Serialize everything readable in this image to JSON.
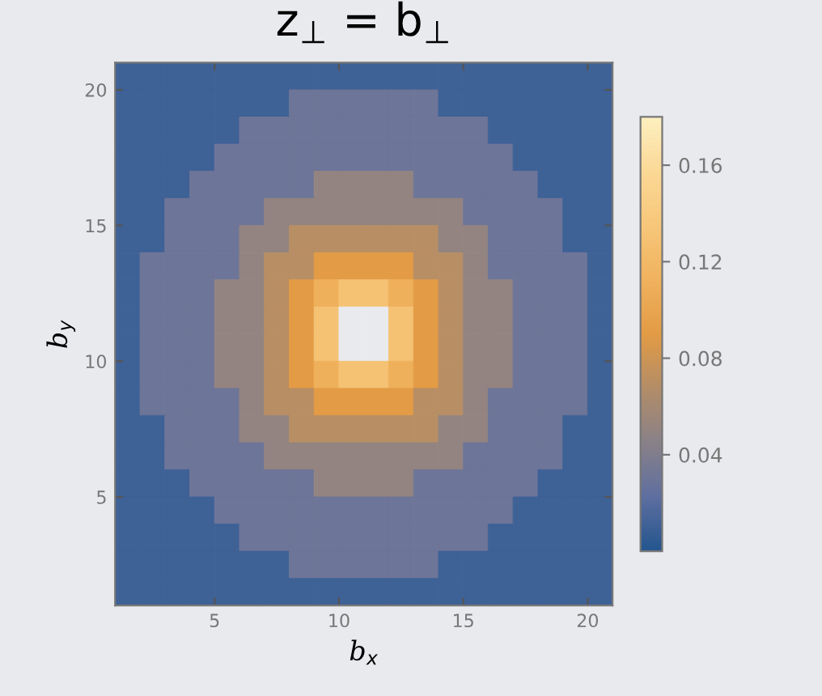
{
  "chart_data": {
    "type": "heatmap",
    "title": "z$_{⊥}$ = b$_{⊥}$",
    "xlabel": "b$_{x}$",
    "ylabel": "b$_{y}$",
    "xlim": [
      1,
      21
    ],
    "ylim": [
      1,
      21
    ],
    "xticks": [
      5,
      10,
      15,
      20
    ],
    "yticks": [
      5,
      10,
      15,
      20
    ],
    "clim": [
      0,
      0.18
    ],
    "cticks": [
      0.04,
      0.08,
      0.12,
      0.16
    ],
    "colors": [
      "#24568f",
      "#5f6fa0",
      "#8a8188",
      "#b38d68",
      "#e39b45",
      "#f0b25e",
      "#f7c77a",
      "#fbd896",
      "#fdf0c0"
    ],
    "cells": [
      [
        0.01,
        0.01,
        0.01,
        0.01,
        0.01,
        0.01,
        0.01,
        0.01,
        0.01,
        0.01,
        0.01,
        0.01,
        0.01,
        0.01,
        0.01,
        0.01,
        0.01,
        0.01,
        0.01,
        0.01
      ],
      [
        0.01,
        0.01,
        0.01,
        0.01,
        0.01,
        0.01,
        0.01,
        0.03,
        0.03,
        0.03,
        0.03,
        0.03,
        0.03,
        0.01,
        0.01,
        0.01,
        0.01,
        0.01,
        0.01,
        0.01
      ],
      [
        0.01,
        0.01,
        0.01,
        0.01,
        0.01,
        0.03,
        0.03,
        0.03,
        0.03,
        0.03,
        0.03,
        0.03,
        0.03,
        0.03,
        0.03,
        0.01,
        0.01,
        0.01,
        0.01,
        0.01
      ],
      [
        0.01,
        0.01,
        0.01,
        0.01,
        0.03,
        0.03,
        0.03,
        0.03,
        0.03,
        0.03,
        0.03,
        0.03,
        0.03,
        0.03,
        0.03,
        0.03,
        0.01,
        0.01,
        0.01,
        0.01
      ],
      [
        0.01,
        0.01,
        0.01,
        0.03,
        0.03,
        0.03,
        0.03,
        0.03,
        0.05,
        0.05,
        0.05,
        0.05,
        0.03,
        0.03,
        0.03,
        0.03,
        0.03,
        0.01,
        0.01,
        0.01
      ],
      [
        0.01,
        0.01,
        0.03,
        0.03,
        0.03,
        0.03,
        0.05,
        0.05,
        0.05,
        0.05,
        0.05,
        0.05,
        0.05,
        0.05,
        0.03,
        0.03,
        0.03,
        0.03,
        0.01,
        0.01
      ],
      [
        0.01,
        0.01,
        0.03,
        0.03,
        0.03,
        0.05,
        0.05,
        0.07,
        0.07,
        0.07,
        0.07,
        0.07,
        0.07,
        0.05,
        0.05,
        0.03,
        0.03,
        0.03,
        0.01,
        0.01
      ],
      [
        0.01,
        0.03,
        0.03,
        0.03,
        0.03,
        0.05,
        0.07,
        0.07,
        0.09,
        0.09,
        0.09,
        0.09,
        0.07,
        0.07,
        0.05,
        0.03,
        0.03,
        0.03,
        0.03,
        0.01
      ],
      [
        0.01,
        0.03,
        0.03,
        0.03,
        0.05,
        0.05,
        0.07,
        0.09,
        0.11,
        0.13,
        0.13,
        0.11,
        0.09,
        0.07,
        0.05,
        0.05,
        0.03,
        0.03,
        0.03,
        0.01
      ],
      [
        0.01,
        0.03,
        0.03,
        0.03,
        0.05,
        0.05,
        0.07,
        0.09,
        0.13,
        null,
        null,
        0.13,
        0.09,
        0.07,
        0.05,
        0.05,
        0.03,
        0.03,
        0.03,
        0.01
      ],
      [
        0.01,
        0.03,
        0.03,
        0.03,
        0.05,
        0.05,
        0.07,
        0.09,
        0.13,
        null,
        null,
        0.13,
        0.09,
        0.07,
        0.05,
        0.05,
        0.03,
        0.03,
        0.03,
        0.01
      ],
      [
        0.01,
        0.03,
        0.03,
        0.03,
        0.05,
        0.05,
        0.07,
        0.09,
        0.11,
        0.13,
        0.13,
        0.11,
        0.09,
        0.07,
        0.05,
        0.05,
        0.03,
        0.03,
        0.03,
        0.01
      ],
      [
        0.01,
        0.03,
        0.03,
        0.03,
        0.03,
        0.05,
        0.07,
        0.07,
        0.09,
        0.09,
        0.09,
        0.09,
        0.07,
        0.07,
        0.05,
        0.03,
        0.03,
        0.03,
        0.03,
        0.01
      ],
      [
        0.01,
        0.01,
        0.03,
        0.03,
        0.03,
        0.05,
        0.05,
        0.07,
        0.07,
        0.07,
        0.07,
        0.07,
        0.07,
        0.05,
        0.05,
        0.03,
        0.03,
        0.03,
        0.01,
        0.01
      ],
      [
        0.01,
        0.01,
        0.03,
        0.03,
        0.03,
        0.03,
        0.05,
        0.05,
        0.05,
        0.05,
        0.05,
        0.05,
        0.05,
        0.05,
        0.03,
        0.03,
        0.03,
        0.03,
        0.01,
        0.01
      ],
      [
        0.01,
        0.01,
        0.01,
        0.03,
        0.03,
        0.03,
        0.03,
        0.03,
        0.05,
        0.05,
        0.05,
        0.05,
        0.03,
        0.03,
        0.03,
        0.03,
        0.03,
        0.01,
        0.01,
        0.01
      ],
      [
        0.01,
        0.01,
        0.01,
        0.01,
        0.03,
        0.03,
        0.03,
        0.03,
        0.03,
        0.03,
        0.03,
        0.03,
        0.03,
        0.03,
        0.03,
        0.03,
        0.01,
        0.01,
        0.01,
        0.01
      ],
      [
        0.01,
        0.01,
        0.01,
        0.01,
        0.01,
        0.03,
        0.03,
        0.03,
        0.03,
        0.03,
        0.03,
        0.03,
        0.03,
        0.03,
        0.03,
        0.01,
        0.01,
        0.01,
        0.01,
        0.01
      ],
      [
        0.01,
        0.01,
        0.01,
        0.01,
        0.01,
        0.01,
        0.01,
        0.03,
        0.03,
        0.03,
        0.03,
        0.03,
        0.03,
        0.01,
        0.01,
        0.01,
        0.01,
        0.01,
        0.01,
        0.01
      ],
      [
        0.01,
        0.01,
        0.01,
        0.01,
        0.01,
        0.01,
        0.01,
        0.01,
        0.01,
        0.01,
        0.01,
        0.01,
        0.01,
        0.01,
        0.01,
        0.01,
        0.01,
        0.01,
        0.01,
        0.01
      ]
    ]
  }
}
